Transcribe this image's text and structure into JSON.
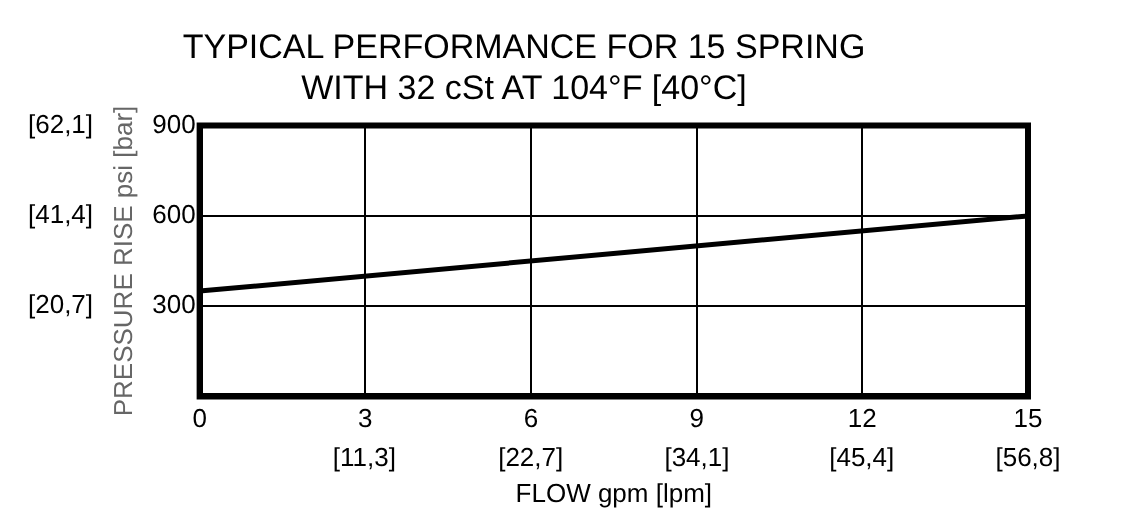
{
  "chart_data": {
    "type": "line",
    "title": "TYPICAL PERFORMANCE FOR 15 SPRING",
    "subtitle": "WITH 32 cSt AT 104°F [40°C]",
    "xlabel": "FLOW gpm [lpm]",
    "ylabel": "PRESSURE RISE psi [bar]",
    "x": [
      0,
      15
    ],
    "series": [
      {
        "color": "#000000",
        "values": [
          350,
          600
        ]
      }
    ],
    "xlim": [
      0,
      15
    ],
    "xticks": [
      0,
      3,
      6,
      9,
      12,
      15
    ],
    "x2lim": [
      0,
      56.8
    ],
    "x2ticks": [
      {
        "value": 11.3,
        "label": "[11,3]"
      },
      {
        "value": 22.7,
        "label": "[22,7]"
      },
      {
        "value": 34.1,
        "label": "[34,1]"
      },
      {
        "value": 45.4,
        "label": "[45,4]"
      },
      {
        "value": 56.8,
        "label": "[56,8]"
      }
    ],
    "ylim": [
      0,
      900
    ],
    "yticks": [
      300,
      600,
      900
    ],
    "y2lim": [
      0,
      62.1
    ],
    "y2ticks": [
      {
        "value": 20.7,
        "label": "[20,7]"
      },
      {
        "value": 41.4,
        "label": "[41,4]"
      },
      {
        "value": 62.1,
        "label": "[62,1]"
      }
    ],
    "grid": true,
    "legend": false,
    "marker": "none",
    "line_style": "solid"
  }
}
